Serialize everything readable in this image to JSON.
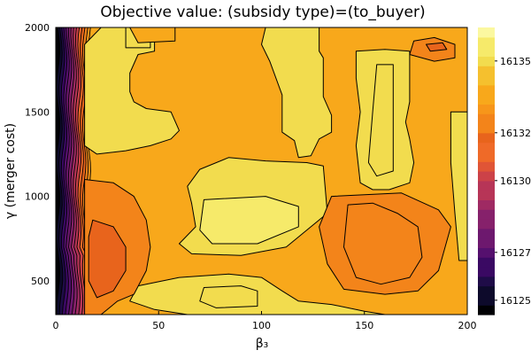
{
  "chart_data": {
    "type": "heatmap",
    "subtype": "filled-contour",
    "title": "Objective value: (subsidy type)=(to_buyer)",
    "xlabel": "β₃",
    "ylabel": "γ (merger cost)",
    "xlim": [
      0,
      200
    ],
    "ylim": [
      300,
      2000
    ],
    "x_ticks": [
      0,
      50,
      100,
      150,
      200
    ],
    "x_tick_labels": [
      "0",
      "50",
      "100",
      "150",
      "200"
    ],
    "y_ticks": [
      500,
      1000,
      1500,
      2000
    ],
    "y_tick_labels": [
      "500",
      "1000",
      "1500",
      "2000"
    ],
    "colorbar": {
      "levels": [
        16124.4,
        16124.8,
        16125.2,
        16125.6,
        16126.0,
        16126.4,
        16126.8,
        16127.2,
        16127.6,
        16128.0,
        16128.4,
        16128.8,
        16129.2,
        16129.6,
        16130.0,
        16130.4,
        16130.8,
        16131.2,
        16131.6,
        16132.0,
        16132.4,
        16132.8,
        16133.2,
        16133.6,
        16134.0,
        16134.4,
        16134.8,
        16135.2,
        16135.6,
        16136.0,
        16136.4
      ],
      "tick_values": [
        16125,
        16127,
        16130,
        16132,
        16135
      ],
      "tick_labels": [
        "16125",
        "16127",
        "16130",
        "16132",
        "16135"
      ],
      "palette": "inferno",
      "colors": [
        "#000004",
        "#0d0a2b",
        "#1f0c48",
        "#3a0963",
        "#55106e",
        "#6d186e",
        "#86216b",
        "#9f2a63",
        "#b73557",
        "#cc4248",
        "#e05536",
        "#ef6a28",
        "#e8641c",
        "#f3841a",
        "#f7961a",
        "#f8a81b",
        "#f5c02e",
        "#f2dc4e",
        "#f6ea6a",
        "#fbf8a0"
      ]
    },
    "grid": false,
    "legend": "none",
    "contour_lines": "black",
    "regions": [
      {
        "level": 16135.4,
        "desc": "pale top near beta 120",
        "poly": [
          [
            112,
            2000
          ],
          [
            124,
            2000
          ],
          [
            124,
            1930
          ],
          [
            112,
            1930
          ]
        ]
      },
      {
        "level": 16134.9,
        "desc": "left upper yellow",
        "poly": [
          [
            22,
            2000
          ],
          [
            48,
            2000
          ],
          [
            48,
            1860
          ],
          [
            40,
            1840
          ],
          [
            36,
            1730
          ],
          [
            36,
            1620
          ],
          [
            38,
            1560
          ],
          [
            44,
            1520
          ],
          [
            56,
            1500
          ],
          [
            60,
            1390
          ],
          [
            56,
            1340
          ],
          [
            46,
            1300
          ],
          [
            34,
            1270
          ],
          [
            20,
            1250
          ],
          [
            14,
            1300
          ],
          [
            14,
            1900
          ]
        ]
      },
      {
        "level": 16135.1,
        "desc": "inner small top-left",
        "poly": [
          [
            34,
            2000
          ],
          [
            46,
            2000
          ],
          [
            46,
            1880
          ],
          [
            34,
            1880
          ]
        ]
      },
      {
        "level": 16134.9,
        "desc": "right upper yellow",
        "poly": [
          [
            102,
            2000
          ],
          [
            128,
            2000
          ],
          [
            128,
            1860
          ],
          [
            130,
            1820
          ],
          [
            130,
            1590
          ],
          [
            134,
            1480
          ],
          [
            134,
            1380
          ],
          [
            128,
            1340
          ],
          [
            124,
            1240
          ],
          [
            118,
            1230
          ],
          [
            116,
            1330
          ],
          [
            110,
            1380
          ],
          [
            110,
            1600
          ],
          [
            104,
            1800
          ],
          [
            100,
            1900
          ]
        ]
      },
      {
        "level": 16134.9,
        "desc": "vertical yellow center-right",
        "poly": [
          [
            146,
            1860
          ],
          [
            160,
            1870
          ],
          [
            172,
            1860
          ],
          [
            172,
            1560
          ],
          [
            170,
            1440
          ],
          [
            172,
            1340
          ],
          [
            174,
            1200
          ],
          [
            172,
            1080
          ],
          [
            162,
            1040
          ],
          [
            154,
            1040
          ],
          [
            148,
            1080
          ],
          [
            146,
            1300
          ],
          [
            148,
            1500
          ],
          [
            146,
            1700
          ]
        ]
      },
      {
        "level": 16135.1,
        "desc": "inner of vertical",
        "poly": [
          [
            156,
            1780
          ],
          [
            164,
            1780
          ],
          [
            164,
            1150
          ],
          [
            156,
            1120
          ],
          [
            152,
            1200
          ],
          [
            154,
            1500
          ]
        ]
      },
      {
        "level": 16134.9,
        "desc": "center yellow blob",
        "poly": [
          [
            84,
            1230
          ],
          [
            102,
            1210
          ],
          [
            122,
            1200
          ],
          [
            130,
            1180
          ],
          [
            132,
            900
          ],
          [
            120,
            780
          ],
          [
            112,
            700
          ],
          [
            90,
            650
          ],
          [
            66,
            660
          ],
          [
            60,
            720
          ],
          [
            68,
            820
          ],
          [
            66,
            960
          ],
          [
            64,
            1060
          ],
          [
            70,
            1160
          ]
        ]
      },
      {
        "level": 16135.2,
        "desc": "center bright inner",
        "poly": [
          [
            72,
            980
          ],
          [
            102,
            1000
          ],
          [
            118,
            940
          ],
          [
            118,
            820
          ],
          [
            98,
            720
          ],
          [
            76,
            720
          ],
          [
            70,
            800
          ]
        ]
      },
      {
        "level": 16134.9,
        "desc": "right edge yellow",
        "poly": [
          [
            192,
            1500
          ],
          [
            200,
            1500
          ],
          [
            200,
            620
          ],
          [
            196,
            620
          ],
          [
            194,
            900
          ],
          [
            192,
            1200
          ]
        ]
      },
      {
        "level": 16132.8,
        "desc": "right bottom orange",
        "poly": [
          [
            134,
            1000
          ],
          [
            150,
            1010
          ],
          [
            168,
            1020
          ],
          [
            186,
            920
          ],
          [
            192,
            820
          ],
          [
            186,
            560
          ],
          [
            176,
            440
          ],
          [
            160,
            420
          ],
          [
            140,
            450
          ],
          [
            132,
            600
          ],
          [
            128,
            820
          ]
        ]
      },
      {
        "level": 16132.4,
        "desc": "deeper right bottom",
        "poly": [
          [
            142,
            950
          ],
          [
            154,
            960
          ],
          [
            166,
            900
          ],
          [
            176,
            820
          ],
          [
            178,
            640
          ],
          [
            172,
            520
          ],
          [
            158,
            480
          ],
          [
            146,
            520
          ],
          [
            140,
            700
          ]
        ]
      },
      {
        "level": 16134.9,
        "desc": "bottom center yellow",
        "poly": [
          [
            40,
            470
          ],
          [
            60,
            520
          ],
          [
            84,
            540
          ],
          [
            100,
            520
          ],
          [
            110,
            440
          ],
          [
            118,
            380
          ],
          [
            134,
            360
          ],
          [
            150,
            320
          ],
          [
            160,
            300
          ],
          [
            64,
            300
          ],
          [
            48,
            330
          ],
          [
            36,
            380
          ]
        ]
      },
      {
        "level": 16135.1,
        "desc": "bottom inner",
        "poly": [
          [
            72,
            460
          ],
          [
            90,
            470
          ],
          [
            98,
            440
          ],
          [
            98,
            350
          ],
          [
            78,
            340
          ],
          [
            70,
            380
          ]
        ]
      },
      {
        "level": 16132.8,
        "desc": "left lower orange",
        "poly": [
          [
            14,
            1100
          ],
          [
            28,
            1080
          ],
          [
            38,
            1000
          ],
          [
            44,
            860
          ],
          [
            46,
            700
          ],
          [
            44,
            560
          ],
          [
            38,
            420
          ],
          [
            30,
            380
          ],
          [
            22,
            300
          ],
          [
            14,
            300
          ]
        ]
      },
      {
        "level": 16132.0,
        "desc": "left lower deep",
        "poly": [
          [
            18,
            860
          ],
          [
            28,
            820
          ],
          [
            34,
            700
          ],
          [
            34,
            560
          ],
          [
            28,
            440
          ],
          [
            20,
            400
          ],
          [
            16,
            500
          ],
          [
            16,
            760
          ]
        ]
      },
      {
        "level": 16132.8,
        "desc": "top right small",
        "poly": [
          [
            174,
            1920
          ],
          [
            184,
            1940
          ],
          [
            194,
            1900
          ],
          [
            194,
            1820
          ],
          [
            184,
            1800
          ],
          [
            172,
            1840
          ]
        ]
      },
      {
        "level": 16132.0,
        "desc": "top right inner",
        "poly": [
          [
            180,
            1900
          ],
          [
            188,
            1910
          ],
          [
            190,
            1870
          ],
          [
            182,
            1860
          ]
        ]
      },
      {
        "level": 16133.6,
        "desc": "upper band left",
        "poly": [
          [
            36,
            2000
          ],
          [
            58,
            2000
          ],
          [
            58,
            1920
          ],
          [
            40,
            1910
          ]
        ]
      }
    ]
  }
}
